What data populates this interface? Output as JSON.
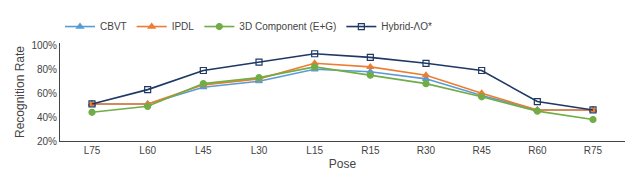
{
  "chart_data": {
    "type": "line",
    "xlabel": "Pose",
    "ylabel": "Recognition Rate",
    "categories": [
      "L75",
      "L60",
      "L45",
      "L30",
      "L15",
      "R15",
      "R30",
      "R45",
      "R60",
      "R75"
    ],
    "series": [
      {
        "name": "CBVT",
        "color": "#5b9bd5",
        "marker": "triangle-up",
        "values": [
          51,
          51,
          65,
          70,
          80,
          78,
          72,
          58,
          46,
          46
        ]
      },
      {
        "name": "IPDL",
        "color": "#ed7d31",
        "marker": "triangle-up",
        "values": [
          51,
          51,
          67,
          72,
          85,
          82,
          75,
          60,
          46,
          46
        ]
      },
      {
        "name": "3D Component (E+G)",
        "color": "#70ad47",
        "marker": "circle",
        "values": [
          44,
          49,
          68,
          73,
          82,
          75,
          68,
          57,
          45,
          38
        ]
      },
      {
        "name": "Hybrid-ΛO*",
        "color": "#1f3864",
        "marker": "square-open",
        "values": [
          51,
          63,
          79,
          86,
          93,
          90,
          85,
          79,
          53,
          46
        ]
      }
    ],
    "ylim": [
      20,
      102
    ],
    "yticks": [
      {
        "value": 20,
        "label": "20%"
      },
      {
        "value": 40,
        "label": "40%"
      },
      {
        "value": 60,
        "label": "60%"
      },
      {
        "value": 80,
        "label": "80%"
      },
      {
        "value": 100,
        "label": "100%"
      }
    ],
    "grid": false,
    "legend": "top"
  }
}
